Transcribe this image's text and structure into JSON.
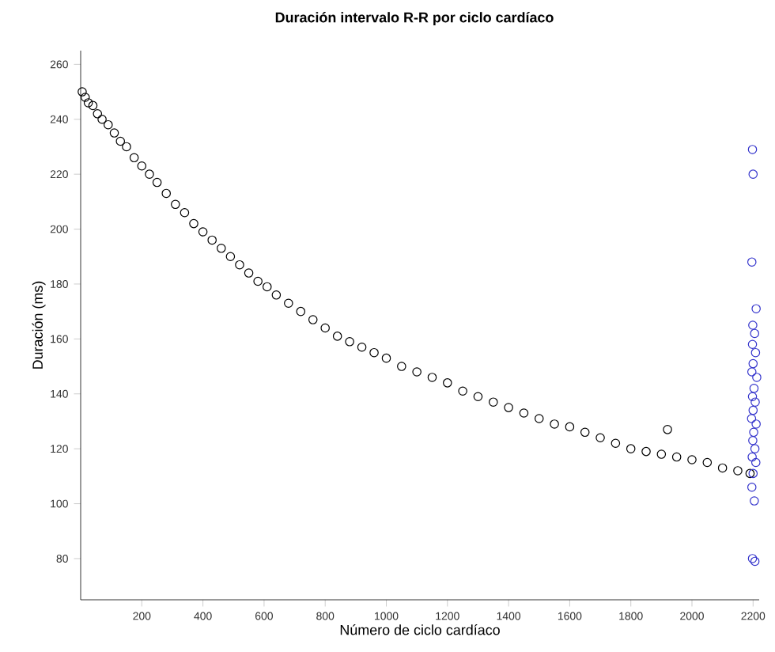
{
  "chart_data": {
    "type": "scatter",
    "title": "Duración intervalo R-R por ciclo cardíaco",
    "xlabel": "Número de ciclo cardíaco",
    "ylabel": "Duración (ms)",
    "xlim": [
      0,
      2220
    ],
    "ylim": [
      65,
      265
    ],
    "xticks": [
      200,
      400,
      600,
      800,
      1000,
      1200,
      1400,
      1600,
      1800,
      2000,
      2200
    ],
    "yticks": [
      80,
      100,
      120,
      140,
      160,
      180,
      200,
      220,
      240,
      260
    ],
    "marker": "circle",
    "series": [
      {
        "color": "#000000",
        "x": [
          5,
          15,
          25,
          40,
          55,
          70,
          90,
          110,
          130,
          150,
          175,
          200,
          225,
          250,
          280,
          310,
          340,
          370,
          400,
          430,
          460,
          490,
          520,
          550,
          580,
          610,
          640,
          680,
          720,
          760,
          800,
          840,
          880,
          920,
          960,
          1000,
          1050,
          1100,
          1150,
          1200,
          1250,
          1300,
          1350,
          1400,
          1450,
          1500,
          1550,
          1600,
          1650,
          1700,
          1750,
          1800,
          1850,
          1900,
          1920,
          1950,
          2000,
          2050,
          2100,
          2150,
          2190
        ],
        "values": [
          250,
          248,
          246,
          245,
          242,
          240,
          238,
          235,
          232,
          230,
          226,
          223,
          220,
          217,
          213,
          209,
          206,
          202,
          199,
          196,
          193,
          190,
          187,
          184,
          181,
          179,
          176,
          173,
          170,
          167,
          164,
          161,
          159,
          157,
          155,
          153,
          150,
          148,
          146,
          144,
          141,
          139,
          137,
          135,
          133,
          131,
          129,
          128,
          126,
          124,
          122,
          120,
          119,
          118,
          127,
          117,
          116,
          115,
          113,
          112,
          111
        ]
      },
      {
        "color": "#3333cc",
        "x": [
          2198,
          2200,
          2196,
          2210,
          2199,
          2205,
          2198,
          2208,
          2200,
          2196,
          2212,
          2203,
          2198,
          2207,
          2200,
          2195,
          2210,
          2202,
          2199,
          2206,
          2197,
          2209,
          2200,
          2196,
          2204,
          2198,
          2206
        ],
        "values": [
          229,
          220,
          188,
          171,
          165,
          162,
          158,
          155,
          151,
          148,
          146,
          142,
          139,
          137,
          134,
          131,
          129,
          126,
          123,
          120,
          117,
          115,
          111,
          106,
          101,
          80,
          79
        ]
      }
    ]
  }
}
